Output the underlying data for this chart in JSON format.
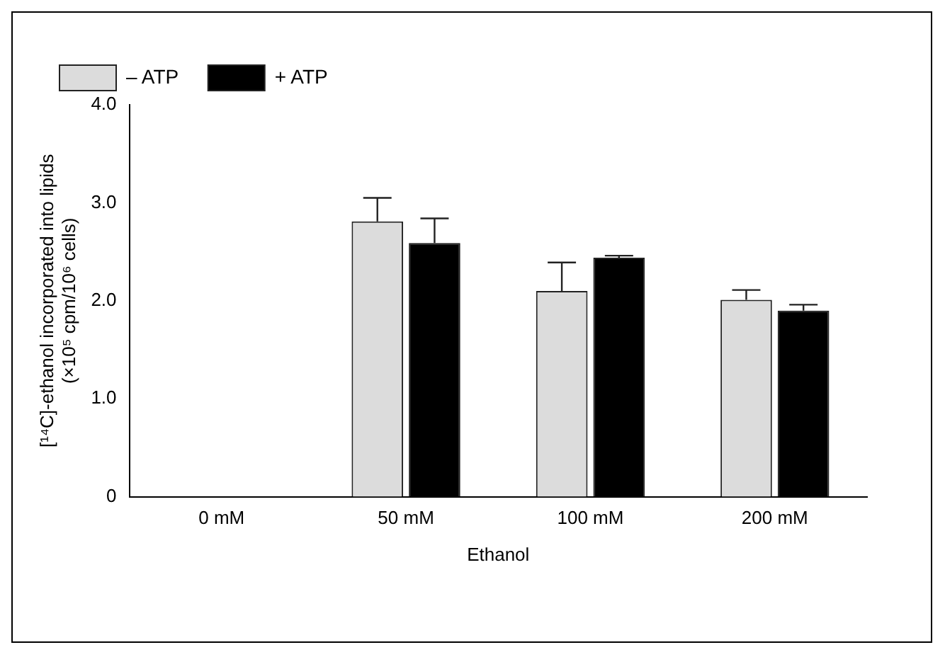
{
  "chart_data": {
    "type": "bar",
    "xlabel": "Ethanol",
    "ylabel": "[¹⁴C]-ethanol incorporated into lipids\n(×10⁵ cpm/10⁶ cells)",
    "categories": [
      "0 mM",
      "50 mM",
      "100 mM",
      "200 mM"
    ],
    "series": [
      {
        "name": "– ATP",
        "color": "#dcdcdc",
        "values": [
          null,
          2.81,
          2.1,
          2.01
        ],
        "errors": [
          null,
          [
            2.81,
            3.05
          ],
          [
            2.1,
            2.39
          ],
          [
            2.01,
            2.11
          ]
        ]
      },
      {
        "name": "+ ATP",
        "color": "#000000",
        "values": [
          null,
          2.59,
          2.44,
          1.9
        ],
        "errors": [
          null,
          [
            2.59,
            2.84
          ],
          [
            2.44,
            2.46
          ],
          [
            1.9,
            1.96
          ]
        ]
      }
    ],
    "ylim": [
      0,
      4
    ],
    "yticks": [
      0,
      {
        "value": 1,
        "label": "1.0"
      },
      {
        "value": 2,
        "label": "2.0"
      },
      {
        "value": 3,
        "label": "3.0"
      },
      {
        "value": 4,
        "label": "4.0"
      }
    ],
    "grid": false,
    "legend": "top left"
  }
}
